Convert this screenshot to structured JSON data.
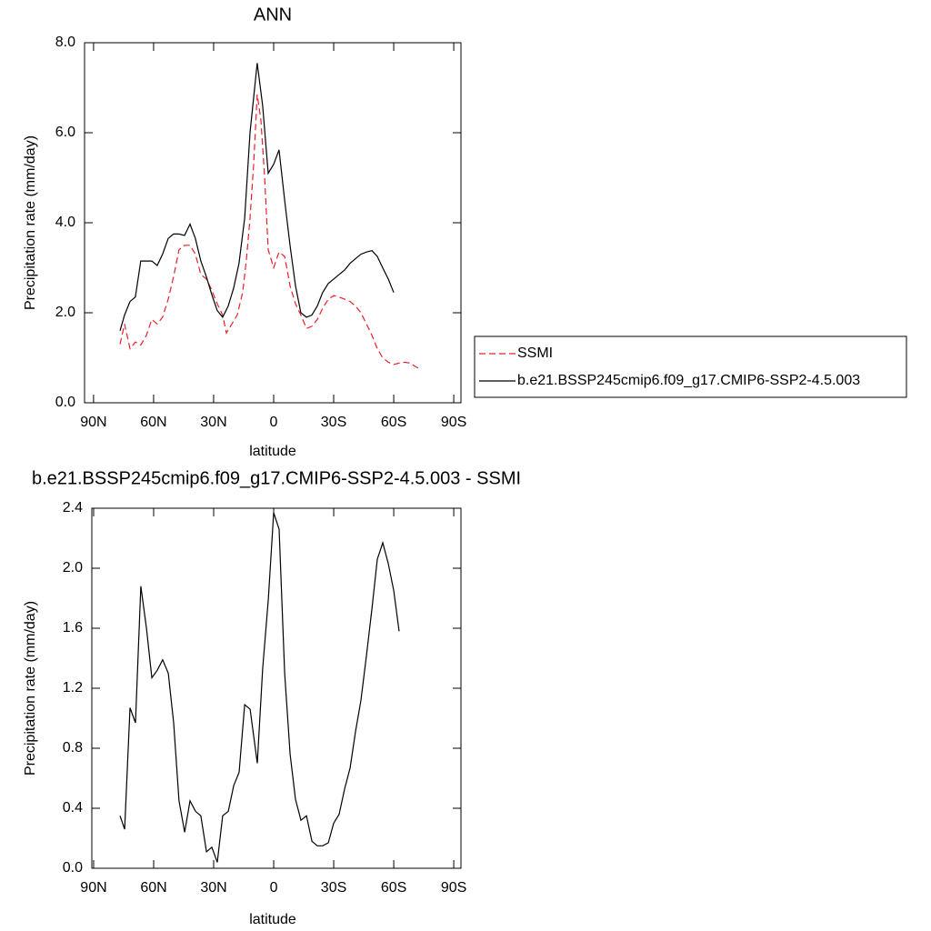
{
  "chart_data": [
    {
      "type": "line",
      "title": "ANN",
      "x_label": "latitude",
      "y_label": "Precipitation rate (mm/day)",
      "xlim": [
        94.5,
        -93.6
      ],
      "ylim": [
        0,
        8
      ],
      "xticks": [
        {
          "value": 90,
          "label": "90N"
        },
        {
          "value": 60,
          "label": "60N"
        },
        {
          "value": 30,
          "label": "30N"
        },
        0,
        {
          "value": -30,
          "label": "30S"
        },
        {
          "value": -60,
          "label": "60S"
        },
        {
          "value": -90,
          "label": "90S"
        }
      ],
      "yticks": [
        {
          "value": 0,
          "label": "0.0"
        },
        {
          "value": 2,
          "label": "2.0"
        },
        {
          "value": 4,
          "label": "4.0"
        },
        {
          "value": 6,
          "label": "6.0"
        },
        {
          "value": 8,
          "label": "8.0"
        }
      ],
      "legend": "right",
      "series": [
        {
          "name": "SSMI",
          "color": "#e8202a",
          "line_style": "dashed",
          "x": [
            76.8,
            74.5,
            71.8,
            69.1,
            66.4,
            63.6,
            60.9,
            58.2,
            55.5,
            52.7,
            50.0,
            47.3,
            44.5,
            41.8,
            39.1,
            36.4,
            33.6,
            30.9,
            28.2,
            25.5,
            23.6,
            20.9,
            18.2,
            15.5,
            13.6,
            11.8,
            10.0,
            8.2,
            6.4,
            4.5,
            2.7,
            0,
            -2.7,
            -5.5,
            -8.2,
            -10.9,
            -13.6,
            -16.4,
            -19.1,
            -21.8,
            -24.5,
            -27.3,
            -30.0,
            -32.7,
            -35.5,
            -38.2,
            -40.9,
            -43.6,
            -46.4,
            -49.1,
            -51.8,
            -54.5,
            -57.3,
            -60.0,
            -62.7,
            -65.5,
            -68.2,
            -70.9,
            -73.6
          ],
          "values": [
            1.3,
            1.75,
            1.2,
            1.35,
            1.28,
            1.5,
            1.85,
            1.75,
            1.9,
            2.3,
            2.8,
            3.4,
            3.5,
            3.5,
            3.3,
            2.85,
            2.75,
            2.5,
            2.2,
            1.95,
            1.55,
            1.75,
            1.95,
            2.45,
            3.2,
            4.1,
            5.3,
            6.85,
            6.3,
            5.0,
            3.4,
            3.0,
            3.35,
            3.25,
            2.6,
            2.2,
            1.95,
            1.65,
            1.7,
            1.85,
            2.1,
            2.3,
            2.38,
            2.35,
            2.3,
            2.25,
            2.15,
            2.0,
            1.75,
            1.5,
            1.2,
            1.0,
            0.9,
            0.85,
            0.88,
            0.9,
            0.88,
            0.8,
            0.75
          ]
        },
        {
          "name": "b.e21.BSSP245cmip6.f09_g17.CMIP6-SSP2-4.5.003",
          "color": "#000000",
          "line_style": "solid",
          "x": [
            76.8,
            74.5,
            71.8,
            69.1,
            66.4,
            63.6,
            60.9,
            58.2,
            55.5,
            52.7,
            50.0,
            47.3,
            44.5,
            41.8,
            39.1,
            36.4,
            33.6,
            30.9,
            28.2,
            25.5,
            22.7,
            20.0,
            17.3,
            14.5,
            11.8,
            8.2,
            5.5,
            2.7,
            0,
            -2.7,
            -5.5,
            -8.2,
            -10.9,
            -13.6,
            -16.4,
            -19.1,
            -21.8,
            -24.5,
            -27.3,
            -30.0,
            -32.7,
            -35.5,
            -38.2,
            -40.9,
            -43.6,
            -46.4,
            -49.1,
            -51.8,
            -54.5,
            -57.3,
            -60.0
          ],
          "values": [
            1.6,
            1.95,
            2.25,
            2.35,
            3.15,
            3.15,
            3.15,
            3.05,
            3.3,
            3.65,
            3.75,
            3.75,
            3.72,
            3.97,
            3.65,
            3.15,
            2.8,
            2.4,
            2.05,
            1.9,
            2.15,
            2.55,
            3.1,
            4.1,
            6.0,
            7.55,
            6.6,
            5.1,
            5.3,
            5.62,
            4.5,
            3.5,
            2.6,
            2.0,
            1.9,
            1.95,
            2.15,
            2.45,
            2.65,
            2.75,
            2.85,
            2.95,
            3.1,
            3.2,
            3.3,
            3.35,
            3.38,
            3.25,
            3.0,
            2.75,
            2.45
          ]
        }
      ]
    },
    {
      "type": "line",
      "title": "b.e21.BSSP245cmip6.f09_g17.CMIP6-SSP2-4.5.003 - SSMI",
      "x_label": "latitude",
      "y_label": "Precipitation rate (mm/day)",
      "xlim": [
        90.9,
        -93.6
      ],
      "ylim": [
        0,
        2.4
      ],
      "xticks": [
        {
          "value": 90,
          "label": "90N"
        },
        {
          "value": 60,
          "label": "60N"
        },
        {
          "value": 30,
          "label": "30N"
        },
        0,
        {
          "value": -30,
          "label": "30S"
        },
        {
          "value": -60,
          "label": "60S"
        },
        {
          "value": -90,
          "label": "90S"
        }
      ],
      "yticks": [
        {
          "value": 0,
          "label": "0.0"
        },
        0.4,
        0.8,
        1.2,
        1.6,
        {
          "value": 2,
          "label": "2.0"
        },
        2.4
      ],
      "series": [
        {
          "color": "#000000",
          "line_style": "solid",
          "x": [
            76.8,
            74.5,
            71.8,
            69.1,
            66.4,
            63.6,
            60.9,
            58.2,
            55.5,
            52.7,
            50.0,
            47.3,
            44.5,
            41.8,
            39.1,
            36.4,
            33.6,
            30.9,
            28.2,
            25.5,
            22.7,
            20.0,
            17.3,
            14.5,
            11.8,
            8.2,
            5.5,
            2.7,
            0,
            -2.7,
            -5.5,
            -8.2,
            -10.9,
            -13.6,
            -16.4,
            -19.1,
            -21.8,
            -24.5,
            -27.3,
            -30.0,
            -32.7,
            -35.5,
            -38.2,
            -40.9,
            -43.6,
            -46.4,
            -49.1,
            -51.8,
            -54.5,
            -57.3,
            -60.0,
            -62.7
          ],
          "values": [
            0.35,
            0.26,
            1.07,
            0.97,
            1.88,
            1.6,
            1.27,
            1.32,
            1.39,
            1.3,
            0.97,
            0.45,
            0.24,
            0.45,
            0.38,
            0.35,
            0.11,
            0.14,
            0.04,
            0.35,
            0.38,
            0.55,
            0.64,
            1.09,
            1.06,
            0.7,
            1.33,
            1.79,
            2.37,
            2.26,
            1.3,
            0.76,
            0.46,
            0.32,
            0.35,
            0.18,
            0.15,
            0.15,
            0.17,
            0.3,
            0.36,
            0.53,
            0.67,
            0.91,
            1.12,
            1.42,
            1.73,
            2.06,
            2.17,
            2.03,
            1.85,
            1.58
          ]
        }
      ]
    }
  ]
}
